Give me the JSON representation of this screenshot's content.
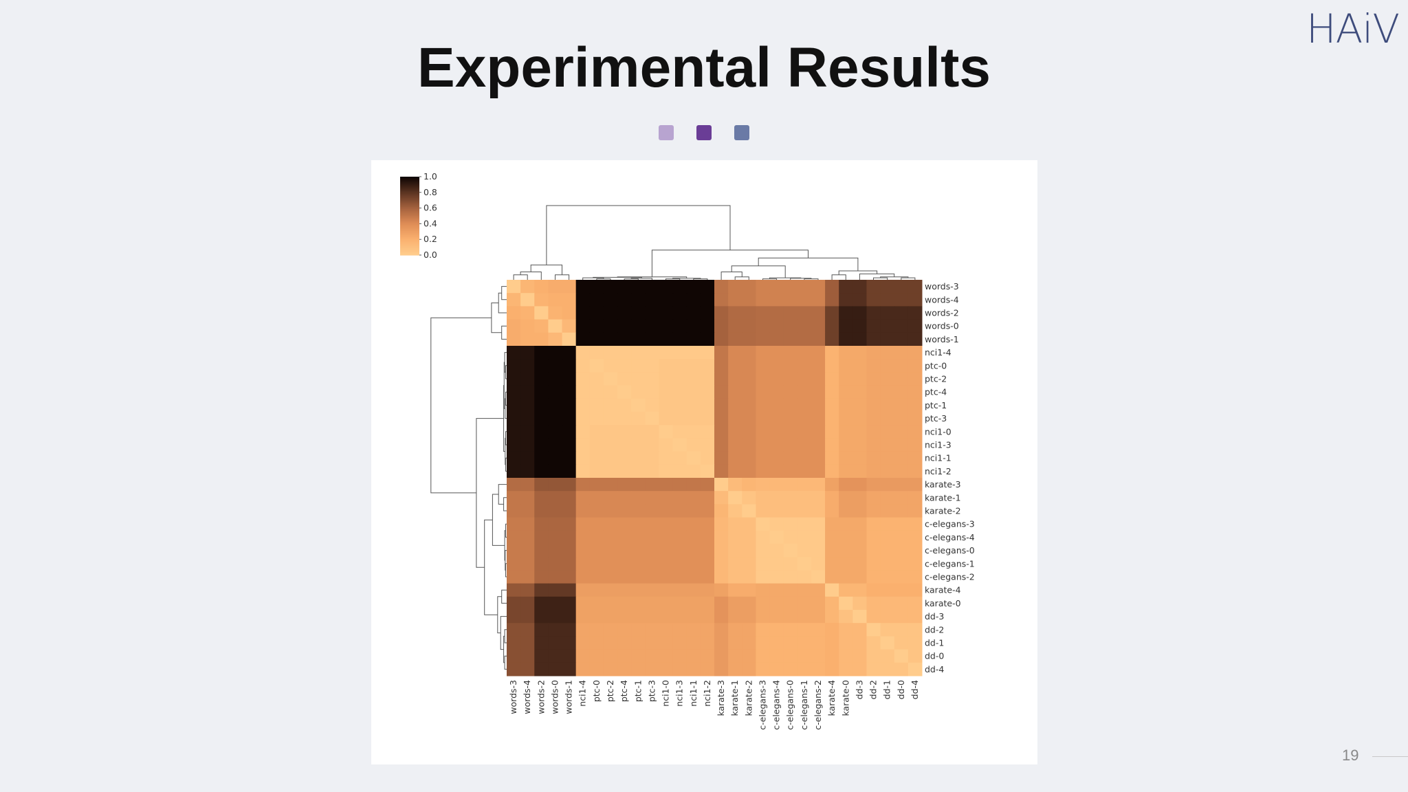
{
  "slide": {
    "title": "Experimental Results",
    "logo": "HAiV",
    "page_number": "19",
    "bullet_colors": [
      "#b8a4d0",
      "#6a3d96",
      "#6a7aa6"
    ]
  },
  "chart_data": {
    "type": "heatmap",
    "title": "",
    "subtitle": "",
    "xlabel": "",
    "ylabel": "",
    "colormap": "copper_r",
    "colorbar": {
      "min": 0.0,
      "max": 1.0,
      "ticks": [
        "0.0",
        "0.2",
        "0.4",
        "0.6",
        "0.8",
        "1.0"
      ]
    },
    "dendrograms": [
      "top",
      "left"
    ],
    "row_labels": [
      "words-3",
      "words-4",
      "words-2",
      "words-0",
      "words-1",
      "nci1-4",
      "ptc-0",
      "ptc-2",
      "ptc-4",
      "ptc-1",
      "ptc-3",
      "nci1-0",
      "nci1-3",
      "nci1-1",
      "nci1-2",
      "karate-3",
      "karate-1",
      "karate-2",
      "c-elegans-3",
      "c-elegans-4",
      "c-elegans-0",
      "c-elegans-1",
      "c-elegans-2",
      "karate-4",
      "karate-0",
      "dd-3",
      "dd-2",
      "dd-1",
      "dd-0",
      "dd-4"
    ],
    "col_labels": [
      "words-3",
      "words-4",
      "words-2",
      "words-0",
      "words-1",
      "nci1-4",
      "ptc-0",
      "ptc-2",
      "ptc-4",
      "ptc-1",
      "ptc-3",
      "nci1-0",
      "nci1-3",
      "nci1-1",
      "nci1-2",
      "karate-3",
      "karate-1",
      "karate-2",
      "c-elegans-3",
      "c-elegans-4",
      "c-elegans-0",
      "c-elegans-1",
      "c-elegans-2",
      "karate-4",
      "karate-0",
      "dd-3",
      "dd-2",
      "dd-1",
      "dd-0",
      "dd-4"
    ],
    "values": [
      [
        0.0,
        0.16,
        0.2,
        0.22,
        0.22,
        1.0,
        1.0,
        1.0,
        1.0,
        1.0,
        1.0,
        1.0,
        1.0,
        1.0,
        1.0,
        0.52,
        0.48,
        0.48,
        0.45,
        0.45,
        0.45,
        0.45,
        0.45,
        0.62,
        0.82,
        0.82,
        0.75,
        0.75,
        0.75,
        0.75
      ],
      [
        0.16,
        0.0,
        0.18,
        0.2,
        0.2,
        1.0,
        1.0,
        1.0,
        1.0,
        1.0,
        1.0,
        1.0,
        1.0,
        1.0,
        1.0,
        0.52,
        0.48,
        0.48,
        0.45,
        0.45,
        0.45,
        0.45,
        0.45,
        0.62,
        0.82,
        0.82,
        0.75,
        0.75,
        0.75,
        0.75
      ],
      [
        0.2,
        0.18,
        0.0,
        0.18,
        0.2,
        1.0,
        1.0,
        1.0,
        1.0,
        1.0,
        1.0,
        1.0,
        1.0,
        1.0,
        1.0,
        0.6,
        0.56,
        0.56,
        0.55,
        0.55,
        0.55,
        0.55,
        0.55,
        0.75,
        0.9,
        0.9,
        0.85,
        0.85,
        0.85,
        0.85
      ],
      [
        0.22,
        0.2,
        0.18,
        0.0,
        0.14,
        1.0,
        1.0,
        1.0,
        1.0,
        1.0,
        1.0,
        1.0,
        1.0,
        1.0,
        1.0,
        0.6,
        0.56,
        0.56,
        0.55,
        0.55,
        0.55,
        0.55,
        0.55,
        0.75,
        0.9,
        0.9,
        0.85,
        0.85,
        0.85,
        0.85
      ],
      [
        0.22,
        0.2,
        0.2,
        0.14,
        0.0,
        1.0,
        1.0,
        1.0,
        1.0,
        1.0,
        1.0,
        1.0,
        1.0,
        1.0,
        1.0,
        0.6,
        0.56,
        0.56,
        0.55,
        0.55,
        0.55,
        0.55,
        0.55,
        0.75,
        0.9,
        0.9,
        0.85,
        0.85,
        0.85,
        0.85
      ],
      [
        0.95,
        0.95,
        1.0,
        1.0,
        1.0,
        0.02,
        0.02,
        0.02,
        0.02,
        0.02,
        0.02,
        0.02,
        0.02,
        0.02,
        0.02,
        0.5,
        0.42,
        0.42,
        0.38,
        0.38,
        0.38,
        0.38,
        0.38,
        0.18,
        0.24,
        0.24,
        0.26,
        0.26,
        0.26,
        0.26
      ],
      [
        0.95,
        0.95,
        1.0,
        1.0,
        1.0,
        0.02,
        0.0,
        0.02,
        0.02,
        0.02,
        0.02,
        0.04,
        0.04,
        0.04,
        0.04,
        0.5,
        0.42,
        0.42,
        0.38,
        0.38,
        0.38,
        0.38,
        0.38,
        0.18,
        0.24,
        0.24,
        0.26,
        0.26,
        0.26,
        0.26
      ],
      [
        0.95,
        0.95,
        1.0,
        1.0,
        1.0,
        0.02,
        0.02,
        0.0,
        0.02,
        0.02,
        0.02,
        0.04,
        0.04,
        0.04,
        0.04,
        0.5,
        0.42,
        0.42,
        0.38,
        0.38,
        0.38,
        0.38,
        0.38,
        0.18,
        0.24,
        0.24,
        0.26,
        0.26,
        0.26,
        0.26
      ],
      [
        0.95,
        0.95,
        1.0,
        1.0,
        1.0,
        0.02,
        0.02,
        0.02,
        0.0,
        0.02,
        0.02,
        0.04,
        0.04,
        0.04,
        0.04,
        0.5,
        0.42,
        0.42,
        0.38,
        0.38,
        0.38,
        0.38,
        0.38,
        0.18,
        0.24,
        0.24,
        0.26,
        0.26,
        0.26,
        0.26
      ],
      [
        0.95,
        0.95,
        1.0,
        1.0,
        1.0,
        0.02,
        0.02,
        0.02,
        0.02,
        0.0,
        0.02,
        0.04,
        0.04,
        0.04,
        0.04,
        0.5,
        0.42,
        0.42,
        0.38,
        0.38,
        0.38,
        0.38,
        0.38,
        0.18,
        0.24,
        0.24,
        0.26,
        0.26,
        0.26,
        0.26
      ],
      [
        0.95,
        0.95,
        1.0,
        1.0,
        1.0,
        0.02,
        0.02,
        0.02,
        0.02,
        0.02,
        0.0,
        0.04,
        0.04,
        0.04,
        0.04,
        0.5,
        0.42,
        0.42,
        0.38,
        0.38,
        0.38,
        0.38,
        0.38,
        0.18,
        0.24,
        0.24,
        0.26,
        0.26,
        0.26,
        0.26
      ],
      [
        0.95,
        0.95,
        1.0,
        1.0,
        1.0,
        0.02,
        0.04,
        0.04,
        0.04,
        0.04,
        0.04,
        0.0,
        0.02,
        0.02,
        0.02,
        0.5,
        0.42,
        0.42,
        0.38,
        0.38,
        0.38,
        0.38,
        0.38,
        0.18,
        0.24,
        0.24,
        0.26,
        0.26,
        0.26,
        0.26
      ],
      [
        0.95,
        0.95,
        1.0,
        1.0,
        1.0,
        0.02,
        0.04,
        0.04,
        0.04,
        0.04,
        0.04,
        0.02,
        0.0,
        0.02,
        0.02,
        0.5,
        0.42,
        0.42,
        0.38,
        0.38,
        0.38,
        0.38,
        0.38,
        0.18,
        0.24,
        0.24,
        0.26,
        0.26,
        0.26,
        0.26
      ],
      [
        0.95,
        0.95,
        1.0,
        1.0,
        1.0,
        0.02,
        0.04,
        0.04,
        0.04,
        0.04,
        0.04,
        0.02,
        0.02,
        0.0,
        0.02,
        0.5,
        0.42,
        0.42,
        0.38,
        0.38,
        0.38,
        0.38,
        0.38,
        0.18,
        0.24,
        0.24,
        0.26,
        0.26,
        0.26,
        0.26
      ],
      [
        0.95,
        0.95,
        1.0,
        1.0,
        1.0,
        0.02,
        0.04,
        0.04,
        0.04,
        0.04,
        0.04,
        0.02,
        0.02,
        0.02,
        0.0,
        0.5,
        0.42,
        0.42,
        0.38,
        0.38,
        0.38,
        0.38,
        0.38,
        0.18,
        0.24,
        0.24,
        0.26,
        0.26,
        0.26,
        0.26
      ],
      [
        0.55,
        0.55,
        0.65,
        0.65,
        0.65,
        0.5,
        0.5,
        0.5,
        0.5,
        0.5,
        0.5,
        0.5,
        0.5,
        0.5,
        0.5,
        0.0,
        0.12,
        0.16,
        0.14,
        0.14,
        0.14,
        0.14,
        0.14,
        0.28,
        0.36,
        0.36,
        0.32,
        0.32,
        0.32,
        0.32
      ],
      [
        0.5,
        0.5,
        0.6,
        0.6,
        0.6,
        0.42,
        0.42,
        0.42,
        0.42,
        0.42,
        0.42,
        0.42,
        0.42,
        0.42,
        0.42,
        0.12,
        0.0,
        0.06,
        0.1,
        0.1,
        0.1,
        0.1,
        0.1,
        0.22,
        0.3,
        0.3,
        0.26,
        0.26,
        0.26,
        0.26
      ],
      [
        0.5,
        0.5,
        0.6,
        0.6,
        0.6,
        0.42,
        0.42,
        0.42,
        0.42,
        0.42,
        0.42,
        0.42,
        0.42,
        0.42,
        0.42,
        0.16,
        0.06,
        0.0,
        0.1,
        0.1,
        0.1,
        0.1,
        0.1,
        0.22,
        0.3,
        0.3,
        0.26,
        0.26,
        0.26,
        0.26
      ],
      [
        0.48,
        0.48,
        0.58,
        0.58,
        0.58,
        0.38,
        0.38,
        0.38,
        0.38,
        0.38,
        0.38,
        0.38,
        0.38,
        0.38,
        0.38,
        0.14,
        0.1,
        0.1,
        0.0,
        0.02,
        0.02,
        0.02,
        0.02,
        0.24,
        0.24,
        0.24,
        0.18,
        0.18,
        0.18,
        0.18
      ],
      [
        0.48,
        0.48,
        0.58,
        0.58,
        0.58,
        0.38,
        0.38,
        0.38,
        0.38,
        0.38,
        0.38,
        0.38,
        0.38,
        0.38,
        0.38,
        0.14,
        0.1,
        0.1,
        0.02,
        0.0,
        0.02,
        0.02,
        0.02,
        0.24,
        0.24,
        0.24,
        0.18,
        0.18,
        0.18,
        0.18
      ],
      [
        0.48,
        0.48,
        0.58,
        0.58,
        0.58,
        0.38,
        0.38,
        0.38,
        0.38,
        0.38,
        0.38,
        0.38,
        0.38,
        0.38,
        0.38,
        0.14,
        0.1,
        0.1,
        0.02,
        0.02,
        0.0,
        0.02,
        0.02,
        0.24,
        0.24,
        0.24,
        0.18,
        0.18,
        0.18,
        0.18
      ],
      [
        0.48,
        0.48,
        0.58,
        0.58,
        0.58,
        0.38,
        0.38,
        0.38,
        0.38,
        0.38,
        0.38,
        0.38,
        0.38,
        0.38,
        0.38,
        0.14,
        0.1,
        0.1,
        0.02,
        0.02,
        0.02,
        0.0,
        0.02,
        0.24,
        0.24,
        0.24,
        0.18,
        0.18,
        0.18,
        0.18
      ],
      [
        0.48,
        0.48,
        0.58,
        0.58,
        0.58,
        0.38,
        0.38,
        0.38,
        0.38,
        0.38,
        0.38,
        0.38,
        0.38,
        0.38,
        0.38,
        0.14,
        0.1,
        0.1,
        0.02,
        0.02,
        0.02,
        0.02,
        0.0,
        0.24,
        0.24,
        0.24,
        0.18,
        0.18,
        0.18,
        0.18
      ],
      [
        0.65,
        0.65,
        0.78,
        0.78,
        0.78,
        0.3,
        0.3,
        0.3,
        0.3,
        0.3,
        0.3,
        0.3,
        0.3,
        0.3,
        0.3,
        0.28,
        0.22,
        0.22,
        0.24,
        0.24,
        0.24,
        0.24,
        0.24,
        0.0,
        0.16,
        0.16,
        0.2,
        0.2,
        0.2,
        0.2
      ],
      [
        0.72,
        0.72,
        0.88,
        0.88,
        0.88,
        0.28,
        0.28,
        0.28,
        0.28,
        0.28,
        0.28,
        0.28,
        0.28,
        0.28,
        0.28,
        0.36,
        0.3,
        0.3,
        0.24,
        0.24,
        0.24,
        0.24,
        0.24,
        0.16,
        0.0,
        0.08,
        0.14,
        0.14,
        0.14,
        0.14
      ],
      [
        0.72,
        0.72,
        0.88,
        0.88,
        0.88,
        0.28,
        0.28,
        0.28,
        0.28,
        0.28,
        0.28,
        0.28,
        0.28,
        0.28,
        0.28,
        0.36,
        0.3,
        0.3,
        0.24,
        0.24,
        0.24,
        0.24,
        0.24,
        0.16,
        0.08,
        0.0,
        0.14,
        0.14,
        0.14,
        0.14
      ],
      [
        0.68,
        0.68,
        0.85,
        0.85,
        0.85,
        0.26,
        0.26,
        0.26,
        0.26,
        0.26,
        0.26,
        0.26,
        0.26,
        0.26,
        0.26,
        0.32,
        0.26,
        0.26,
        0.18,
        0.18,
        0.18,
        0.18,
        0.18,
        0.2,
        0.14,
        0.14,
        0.0,
        0.06,
        0.06,
        0.06
      ],
      [
        0.68,
        0.68,
        0.85,
        0.85,
        0.85,
        0.26,
        0.26,
        0.26,
        0.26,
        0.26,
        0.26,
        0.26,
        0.26,
        0.26,
        0.26,
        0.32,
        0.26,
        0.26,
        0.18,
        0.18,
        0.18,
        0.18,
        0.18,
        0.2,
        0.14,
        0.14,
        0.06,
        0.0,
        0.06,
        0.06
      ],
      [
        0.68,
        0.68,
        0.85,
        0.85,
        0.85,
        0.26,
        0.26,
        0.26,
        0.26,
        0.26,
        0.26,
        0.26,
        0.26,
        0.26,
        0.26,
        0.32,
        0.26,
        0.26,
        0.18,
        0.18,
        0.18,
        0.18,
        0.18,
        0.2,
        0.14,
        0.14,
        0.06,
        0.06,
        0.0,
        0.06
      ],
      [
        0.68,
        0.68,
        0.85,
        0.85,
        0.85,
        0.26,
        0.26,
        0.26,
        0.26,
        0.26,
        0.26,
        0.26,
        0.26,
        0.26,
        0.26,
        0.32,
        0.26,
        0.26,
        0.18,
        0.18,
        0.18,
        0.18,
        0.18,
        0.2,
        0.14,
        0.14,
        0.06,
        0.06,
        0.06,
        0.0
      ]
    ]
  }
}
